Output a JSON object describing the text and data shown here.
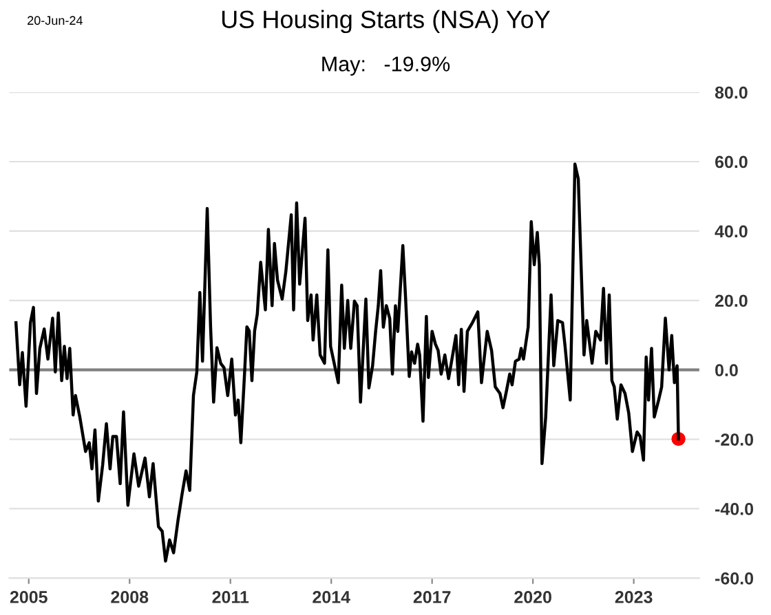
{
  "chart_data": {
    "type": "line",
    "title": "US Housing Starts (NSA) YoY",
    "subtitle": "May:   -19.9%",
    "annotations": [
      "20-Jun-24"
    ],
    "x": [
      2004.62,
      2004.73,
      2004.81,
      2004.92,
      2005.05,
      2005.14,
      2005.23,
      2005.33,
      2005.46,
      2005.57,
      2005.71,
      2005.79,
      2005.88,
      2005.98,
      2006.06,
      2006.14,
      2006.22,
      2006.32,
      2006.39,
      2006.52,
      2006.69,
      2006.8,
      2006.88,
      2006.97,
      2007.07,
      2007.2,
      2007.31,
      2007.42,
      2007.5,
      2007.61,
      2007.72,
      2007.82,
      2007.95,
      2008.13,
      2008.27,
      2008.46,
      2008.59,
      2008.7,
      2008.86,
      2008.97,
      2009.07,
      2009.19,
      2009.31,
      2009.44,
      2009.56,
      2009.68,
      2009.79,
      2009.9,
      2010.0,
      2010.09,
      2010.17,
      2010.31,
      2010.41,
      2010.5,
      2010.6,
      2010.71,
      2010.81,
      2010.92,
      2011.04,
      2011.15,
      2011.23,
      2011.31,
      2011.42,
      2011.49,
      2011.56,
      2011.64,
      2011.72,
      2011.8,
      2011.9,
      2012.04,
      2012.13,
      2012.24,
      2012.31,
      2012.4,
      2012.54,
      2012.65,
      2012.81,
      2012.88,
      2012.97,
      2013.06,
      2013.22,
      2013.3,
      2013.4,
      2013.46,
      2013.57,
      2013.67,
      2013.8,
      2013.9,
      2013.98,
      2014.21,
      2014.31,
      2014.39,
      2014.49,
      2014.58,
      2014.69,
      2014.77,
      2014.87,
      2015.03,
      2015.12,
      2015.23,
      2015.32,
      2015.4,
      2015.47,
      2015.55,
      2015.64,
      2015.74,
      2015.82,
      2015.91,
      2015.98,
      2016.13,
      2016.21,
      2016.32,
      2016.39,
      2016.48,
      2016.57,
      2016.63,
      2016.73,
      2016.83,
      2016.89,
      2017.0,
      2017.1,
      2017.18,
      2017.27,
      2017.38,
      2017.49,
      2017.57,
      2017.71,
      2017.79,
      2017.87,
      2017.95,
      2018.05,
      2018.2,
      2018.36,
      2018.47,
      2018.64,
      2018.77,
      2018.88,
      2019.02,
      2019.11,
      2019.21,
      2019.31,
      2019.38,
      2019.48,
      2019.59,
      2019.65,
      2019.72,
      2019.86,
      2019.95,
      2020.04,
      2020.13,
      2020.19,
      2020.27,
      2020.38,
      2020.54,
      2020.62,
      2020.74,
      2020.88,
      2020.95,
      2021.11,
      2021.25,
      2021.35,
      2021.52,
      2021.6,
      2021.76,
      2021.87,
      2022.01,
      2022.1,
      2022.19,
      2022.27,
      2022.35,
      2022.42,
      2022.51,
      2022.62,
      2022.74,
      2022.85,
      2022.96,
      2023.1,
      2023.19,
      2023.29,
      2023.37,
      2023.44,
      2023.53,
      2023.61,
      2023.74,
      2023.83,
      2023.94,
      2024.05,
      2024.13,
      2024.21,
      2024.29,
      2024.33
    ],
    "series": [
      {
        "color": "#000000",
        "values": [
          13.6,
          -4.3,
          5,
          -10.5,
          13.6,
          18,
          -6.8,
          6.2,
          11.8,
          3.1,
          14.9,
          -0.6,
          16.4,
          -3.1,
          6.8,
          -2.5,
          6.2,
          -13,
          -7.4,
          -13.6,
          -23.5,
          -21,
          -28.5,
          -17.3,
          -37.8,
          -27.3,
          -15.5,
          -28.5,
          -19.2,
          -19.2,
          -32.8,
          -12.1,
          -39,
          -24.2,
          -33.5,
          -25.4,
          -36.6,
          -27,
          -45.2,
          -46.5,
          -55.1,
          -49,
          -52.7,
          -43.4,
          -35.9,
          -29.1,
          -34.7,
          -7.4,
          -0.6,
          22.3,
          2.5,
          46.5,
          12.4,
          -9.3,
          6.4,
          1.9,
          0.6,
          -7.4,
          3.1,
          -13,
          -8.7,
          -21,
          -1.2,
          12.4,
          11.2,
          -3.1,
          11.2,
          16.1,
          31,
          17.3,
          40.5,
          18.5,
          36.4,
          25.9,
          20.4,
          28.4,
          44.7,
          17.3,
          48.1,
          24.7,
          43.7,
          14.2,
          21.6,
          8.6,
          21.6,
          4.3,
          1.9,
          34.6,
          6.8,
          -3.7,
          24.4,
          6.2,
          20,
          6.2,
          19.8,
          18.5,
          -9.3,
          20.4,
          -5.2,
          1.2,
          11.1,
          18.5,
          28.6,
          12.3,
          18.5,
          14.8,
          -1.2,
          18.5,
          11.1,
          35.8,
          21,
          -1.9,
          5.2,
          1.9,
          7.4,
          4.3,
          -14.8,
          15.4,
          -2.2,
          11.1,
          7.4,
          5.6,
          -1.2,
          4.3,
          -2.5,
          1.9,
          9.9,
          -4.3,
          11.7,
          -6.2,
          11.1,
          13.6,
          16.7,
          -3.7,
          11.1,
          5.6,
          -4.9,
          -6.8,
          -10.9,
          -6.2,
          -1.2,
          -4.3,
          2.5,
          3.1,
          6.2,
          3.1,
          12.4,
          42.7,
          30.3,
          39.6,
          30.3,
          -27,
          -13.6,
          21.6,
          1.2,
          14.2,
          13.6,
          7.4,
          -8.7,
          59.3,
          55,
          4.3,
          14.2,
          1.9,
          11.1,
          8.6,
          23.5,
          1.9,
          21.6,
          -3.1,
          -4.9,
          -14.2,
          -4.3,
          -6.8,
          -12.4,
          -23.5,
          -17.9,
          -19.2,
          -26,
          3.7,
          -8.7,
          6.2,
          -13.6,
          -8.7,
          -4.9,
          14.9,
          0,
          9.9,
          -3.7,
          1.2,
          -19.9
        ]
      },
      {
        "type": "scatter",
        "color": "#ff0000",
        "x": [
          2024.33
        ],
        "values": [
          -19.9
        ],
        "marker": "circle"
      }
    ],
    "xlim": [
      2004.42,
      2024.95
    ],
    "xticks": [
      2005,
      2008,
      2011,
      2014,
      2017,
      2020,
      2023
    ],
    "ylim": [
      -60,
      80
    ],
    "yticks": [
      {
        "value": -60,
        "label": "-60.0"
      },
      {
        "value": -40,
        "label": "-40.0"
      },
      {
        "value": -20,
        "label": "-20.0"
      },
      {
        "value": 0,
        "label": "0.0"
      },
      {
        "value": 20,
        "label": "20.0"
      },
      {
        "value": 40,
        "label": "40.0"
      },
      {
        "value": 60,
        "label": "60.0"
      },
      {
        "value": 80,
        "label": "80.0"
      }
    ],
    "ref_lines": [
      {
        "axis": "y",
        "value": 0,
        "color": "#808080"
      }
    ],
    "grid": "y",
    "legend": false
  }
}
